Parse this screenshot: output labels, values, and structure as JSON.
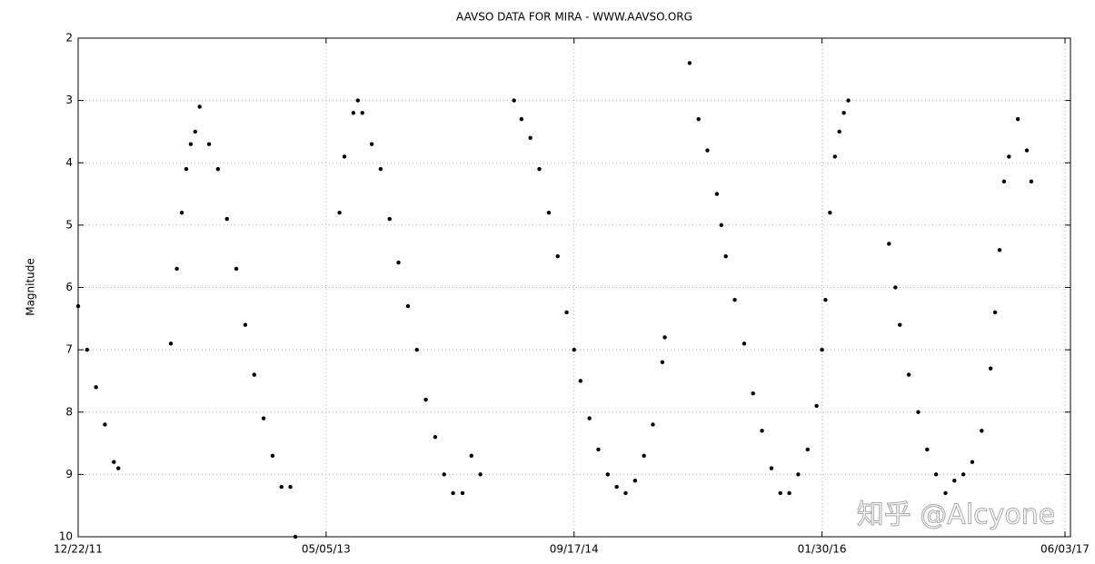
{
  "chart_data": {
    "type": "scatter",
    "title": "AAVSO DATA FOR MIRA - WWW.AAVSO.ORG",
    "y_label": "Magnitude",
    "watermark": "知乎 @Alcyone",
    "xlim": [
      "2011-12-22",
      "2017-06-14"
    ],
    "ylim": [
      10,
      2
    ],
    "xticks": [
      {
        "value": "2011-12-22",
        "label": "12/22/11"
      },
      {
        "value": "2013-05-05",
        "label": "05/05/13"
      },
      {
        "value": "2014-09-17",
        "label": "09/17/14"
      },
      {
        "value": "2016-01-30",
        "label": "01/30/16"
      },
      {
        "value": "2017-06-03",
        "label": "06/03/17"
      }
    ],
    "yticks": [
      2,
      3,
      4,
      5,
      6,
      7,
      8,
      9,
      10
    ],
    "grid": true,
    "series": [
      {
        "name": "Mira",
        "color": "#000000",
        "x": [
          "2011-12-22",
          "2012-01-09",
          "2012-01-27",
          "2012-02-14",
          "2012-03-03",
          "2012-03-12",
          "2012-06-26",
          "2012-07-08",
          "2012-07-18",
          "2012-07-27",
          "2012-08-05",
          "2012-08-14",
          "2012-08-23",
          "2012-09-11",
          "2012-09-29",
          "2012-10-17",
          "2012-11-05",
          "2012-11-23",
          "2012-12-11",
          "2012-12-30",
          "2013-01-17",
          "2013-02-04",
          "2013-02-22",
          "2013-03-04",
          "2013-06-01",
          "2013-06-11",
          "2013-06-29",
          "2013-07-08",
          "2013-07-17",
          "2013-08-05",
          "2013-08-23",
          "2013-09-10",
          "2013-09-28",
          "2013-10-17",
          "2013-11-04",
          "2013-11-22",
          "2013-12-11",
          "2013-12-29",
          "2014-01-16",
          "2014-02-04",
          "2014-02-22",
          "2014-03-12",
          "2014-05-19",
          "2014-06-03",
          "2014-06-21",
          "2014-07-09",
          "2014-07-28",
          "2014-08-15",
          "2014-09-02",
          "2014-09-17",
          "2014-09-30",
          "2014-10-18",
          "2014-11-05",
          "2014-11-24",
          "2014-12-12",
          "2014-12-30",
          "2015-01-18",
          "2015-02-05",
          "2015-02-23",
          "2015-03-14",
          "2015-03-19",
          "2015-05-08",
          "2015-05-26",
          "2015-06-13",
          "2015-07-02",
          "2015-07-11",
          "2015-07-20",
          "2015-08-07",
          "2015-08-26",
          "2015-09-13",
          "2015-10-01",
          "2015-10-20",
          "2015-11-07",
          "2015-11-25",
          "2015-12-13",
          "2016-01-01",
          "2016-01-19",
          "2016-01-30",
          "2016-02-06",
          "2016-02-15",
          "2016-02-25",
          "2016-03-05",
          "2016-03-14",
          "2016-03-23",
          "2016-06-13",
          "2016-06-26",
          "2016-07-05",
          "2016-07-23",
          "2016-08-11",
          "2016-08-29",
          "2016-09-16",
          "2016-10-05",
          "2016-10-23",
          "2016-11-10",
          "2016-11-28",
          "2016-12-17",
          "2017-01-04",
          "2017-01-13",
          "2017-01-22",
          "2017-01-31",
          "2017-02-10",
          "2017-02-28",
          "2017-03-18",
          "2017-03-27"
        ],
        "values": [
          6.3,
          7.0,
          7.6,
          8.2,
          8.8,
          8.9,
          6.9,
          5.7,
          4.8,
          4.1,
          3.7,
          3.5,
          3.1,
          3.7,
          4.1,
          4.9,
          5.7,
          6.6,
          7.4,
          8.1,
          8.7,
          9.2,
          9.2,
          10.0,
          4.8,
          3.9,
          3.2,
          3.0,
          3.2,
          3.7,
          4.1,
          4.9,
          5.6,
          6.3,
          7.0,
          7.8,
          8.4,
          9.0,
          9.3,
          9.3,
          8.7,
          9.0,
          3.0,
          3.3,
          3.6,
          4.1,
          4.8,
          5.5,
          6.4,
          7.0,
          7.5,
          8.1,
          8.6,
          9.0,
          9.2,
          9.3,
          9.1,
          8.7,
          8.2,
          7.2,
          6.8,
          2.4,
          3.3,
          3.8,
          4.5,
          5.0,
          5.5,
          6.2,
          6.9,
          7.7,
          8.3,
          8.9,
          9.3,
          9.3,
          9.0,
          8.6,
          7.9,
          7.0,
          6.2,
          4.8,
          3.9,
          3.5,
          3.2,
          3.0,
          5.3,
          6.0,
          6.6,
          7.4,
          8.0,
          8.6,
          9.0,
          9.3,
          9.1,
          9.0,
          8.8,
          8.3,
          7.3,
          6.4,
          5.4,
          4.3,
          3.9,
          3.3,
          3.8,
          4.3
        ]
      }
    ]
  }
}
